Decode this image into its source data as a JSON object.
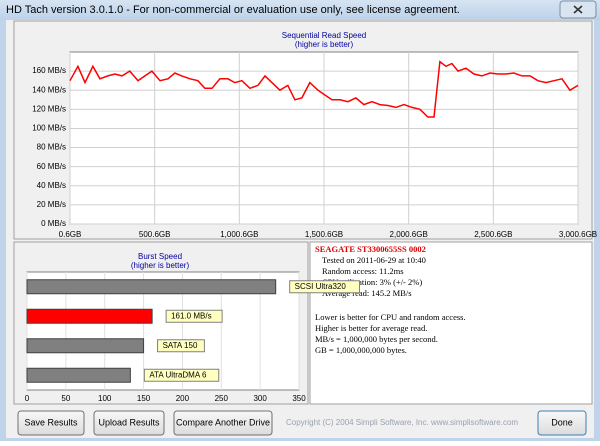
{
  "window": {
    "title": "HD Tach version 3.0.1.0  - For non-commercial or evaluation use only, see license agreement."
  },
  "chart_data": [
    {
      "type": "line",
      "title": "Sequential Read Speed",
      "subtitle": "(higher is better)",
      "color": "#ff0000",
      "grid": true,
      "x": [
        0.6,
        47,
        89,
        136,
        177,
        224,
        266,
        307,
        354,
        402,
        443,
        484,
        532,
        579,
        620,
        661,
        709,
        756,
        797,
        839,
        886,
        933,
        974,
        1016,
        1063,
        1110,
        1152,
        1193,
        1240,
        1287,
        1329,
        1370,
        1417,
        1465,
        1506,
        1547,
        1595,
        1642,
        1689,
        1736,
        1784,
        1831,
        1878,
        1925,
        1973,
        2020,
        2067,
        2114,
        2150,
        2185,
        2221,
        2256,
        2292,
        2339,
        2386,
        2433,
        2481,
        2528,
        2575,
        2622,
        2670,
        2717,
        2764,
        2811,
        2859,
        2906,
        2953,
        3000.6
      ],
      "values": [
        150,
        165,
        148,
        165,
        152,
        155,
        157,
        155,
        160,
        150,
        155,
        160,
        150,
        152,
        158,
        155,
        152,
        150,
        142,
        142,
        152,
        152,
        148,
        150,
        142,
        145,
        155,
        148,
        140,
        145,
        130,
        132,
        148,
        140,
        135,
        130,
        130,
        128,
        132,
        125,
        128,
        125,
        124,
        122,
        125,
        122,
        120,
        112,
        112,
        170,
        165,
        168,
        160,
        163,
        157,
        155,
        158,
        157,
        157,
        158,
        155,
        155,
        150,
        148,
        150,
        152,
        140,
        145
      ],
      "xlim": [
        0.6,
        3000.6
      ],
      "xticks": [
        {
          "value": 0.6,
          "label": "0.6GB"
        },
        {
          "value": 500.6,
          "label": "500.6GB"
        },
        {
          "value": 1000.6,
          "label": "1,000.6GB"
        },
        {
          "value": 1500.6,
          "label": "1,500.6GB"
        },
        {
          "value": 2000.6,
          "label": "2,000.6GB"
        },
        {
          "value": 2500.6,
          "label": "2,500.6GB"
        },
        {
          "value": 3000.6,
          "label": "3,000.6GB"
        }
      ],
      "ylim": [
        0,
        180
      ],
      "yticks": [
        {
          "value": 0,
          "label": "0 MB/s"
        },
        {
          "value": 20,
          "label": "20 MB/s"
        },
        {
          "value": 40,
          "label": "40 MB/s"
        },
        {
          "value": 60,
          "label": "60 MB/s"
        },
        {
          "value": 80,
          "label": "80 MB/s"
        },
        {
          "value": 100,
          "label": "100 MB/s"
        },
        {
          "value": 120,
          "label": "120 MB/s"
        },
        {
          "value": 140,
          "label": "140 MB/s"
        },
        {
          "value": 160,
          "label": "160 MB/s"
        }
      ]
    },
    {
      "type": "hbar",
      "title": "Burst Speed",
      "subtitle": "(higher is better)",
      "grid": true,
      "categories": [
        "SCSI Ultra320",
        null,
        "SATA 150",
        "ATA UltraDMA 6"
      ],
      "values": [
        320,
        161,
        150,
        133
      ],
      "value_labels": [
        null,
        "161.0 MB/s",
        null,
        null
      ],
      "colors": [
        "#808080",
        "#ff0000",
        "#808080",
        "#808080"
      ],
      "xlim": [
        0,
        350
      ],
      "xticks": [
        0,
        50,
        100,
        150,
        200,
        250,
        300,
        350
      ]
    }
  ],
  "drive_info": {
    "name": "SEAGATE ST3300655SS 0002",
    "lines": [
      "Tested on 2011-06-29 at 10:40",
      "Random access: 11.2ms",
      "CPU utilization: 3% (+/- 2%)",
      "Average read: 145.2 MB/s"
    ]
  },
  "notes": [
    "Lower is better for CPU and random access.",
    "Higher is better for average read.",
    "MB/s = 1,000,000 bytes per second.",
    "GB = 1,000,000,000 bytes."
  ],
  "buttons": [
    "Save Results",
    "Upload Results",
    "Compare Another Drive",
    "Done"
  ],
  "copyright": "Copyright (C) 2004 Simpli Software, Inc. www.simplisoftware.com"
}
